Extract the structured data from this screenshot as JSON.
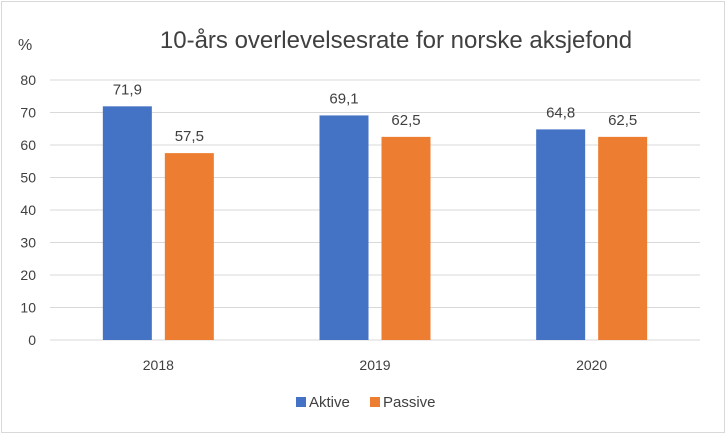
{
  "chart_data": {
    "type": "bar",
    "title": "10-års overlevelsesrate for norske aksjefond",
    "ylabel": "%",
    "xlabel": "",
    "categories": [
      "2018",
      "2019",
      "2020"
    ],
    "series": [
      {
        "name": "Aktive",
        "color": "#4472c4",
        "values": [
          71.9,
          69.1,
          64.8
        ],
        "labels": [
          "71,9",
          "69,1",
          "64,8"
        ]
      },
      {
        "name": "Passive",
        "color": "#ed7d31",
        "values": [
          57.5,
          62.5,
          62.5
        ],
        "labels": [
          "57,5",
          "62,5",
          "62,5"
        ]
      }
    ],
    "ylim": [
      0,
      80
    ],
    "yticks": [
      "0",
      "10",
      "20",
      "30",
      "40",
      "50",
      "60",
      "70",
      "80"
    ],
    "grid": true,
    "legend": "bottom",
    "gridColor": "#d9d9d9"
  }
}
